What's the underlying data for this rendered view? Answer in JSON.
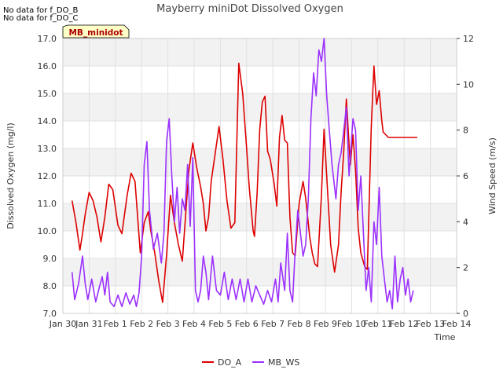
{
  "chart_data": {
    "type": "line",
    "title": "Mayberry miniDot Dissolved Oxygen",
    "notes": [
      "No data for f_DO_B",
      "No data for f_DO_C"
    ],
    "station_label": "MB_minidot",
    "xlabel": "Time",
    "ylabel_left": "Dissolved Oxygen (mg/l)",
    "ylabel_right": "Wind Speed (m/s)",
    "x_ticks": [
      "Jan 30",
      "Jan 31",
      "Feb 1",
      "Feb 2",
      "Feb 3",
      "Feb 4",
      "Feb 5",
      "Feb 6",
      "Feb 7",
      "Feb 8",
      "Feb 9",
      "Feb 10",
      "Feb 11",
      "Feb 12",
      "Feb 13",
      "Feb 14"
    ],
    "xlim": [
      0,
      15
    ],
    "ylim_left": [
      7.0,
      17.0
    ],
    "ylim_right": [
      0,
      12
    ],
    "y_ticks_left": [
      "7.0",
      "8.0",
      "9.0",
      "10.0",
      "11.0",
      "12.0",
      "13.0",
      "14.0",
      "15.0",
      "16.0",
      "17.0"
    ],
    "y_ticks_right": [
      "0",
      "2",
      "4",
      "6",
      "8",
      "10",
      "12"
    ],
    "grid": true,
    "legend": "bottom",
    "series": [
      {
        "name": "DO_A",
        "axis": "left",
        "color": "#dd0000",
        "x": [
          0.35,
          0.5,
          0.65,
          0.75,
          0.85,
          1.0,
          1.15,
          1.3,
          1.45,
          1.6,
          1.75,
          1.9,
          2.1,
          2.25,
          2.45,
          2.6,
          2.75,
          2.95,
          3.1,
          3.25,
          3.35,
          3.5,
          3.65,
          3.8,
          3.95,
          4.1,
          4.25,
          4.4,
          4.55,
          4.7,
          4.8,
          4.95,
          5.1,
          5.25,
          5.35,
          5.45,
          5.55,
          5.65,
          5.8,
          5.95,
          6.1,
          6.25,
          6.4,
          6.55,
          6.7,
          6.85,
          7.0,
          7.1,
          7.25,
          7.3,
          7.4,
          7.5,
          7.6,
          7.7,
          7.8,
          7.9,
          8.05,
          8.15,
          8.25,
          8.35,
          8.45,
          8.55,
          8.65,
          8.75,
          8.85,
          9.0,
          9.15,
          9.25,
          9.4,
          9.5,
          9.6,
          9.7,
          9.85,
          9.95,
          10.05,
          10.2,
          10.35,
          10.5,
          10.6,
          10.7,
          10.8,
          10.95,
          11.05,
          11.15,
          11.25,
          11.35,
          11.5,
          11.6,
          11.75,
          11.85,
          11.95,
          12.05,
          12.15,
          12.2,
          12.3,
          12.4,
          12.55,
          12.65,
          12.75,
          12.9,
          13.0,
          13.05,
          13.15,
          13.25,
          13.3,
          13.4,
          13.5
        ],
        "y": [
          11.1,
          10.3,
          9.3,
          9.9,
          10.6,
          11.4,
          11.1,
          10.5,
          9.6,
          10.5,
          11.7,
          11.5,
          10.2,
          9.9,
          11.3,
          12.1,
          11.8,
          9.2,
          10.3,
          10.7,
          10.0,
          9.2,
          8.2,
          7.4,
          9.1,
          11.3,
          10.3,
          9.5,
          8.9,
          10.9,
          12.2,
          13.2,
          12.3,
          11.6,
          11.0,
          10.0,
          10.5,
          11.8,
          12.8,
          13.8,
          12.6,
          11.1,
          10.1,
          10.3,
          16.1,
          15.0,
          13.0,
          11.6,
          10.0,
          9.8,
          11.4,
          13.7,
          14.7,
          14.9,
          12.9,
          12.6,
          11.7,
          10.9,
          13.4,
          14.2,
          13.3,
          13.2,
          10.5,
          9.2,
          9.1,
          11.0,
          11.8,
          11.2,
          9.8,
          9.2,
          8.8,
          8.7,
          11.3,
          13.7,
          12.0,
          9.5,
          8.5,
          9.5,
          11.4,
          12.9,
          14.8,
          12.4,
          13.5,
          12.2,
          10.1,
          9.2,
          8.7,
          8.6,
          13.8,
          16.0,
          14.6,
          15.1,
          14.0,
          13.6,
          13.5,
          13.4,
          13.4,
          13.4,
          13.4,
          13.4,
          13.4,
          13.4,
          13.4,
          13.4,
          13.4,
          13.4,
          13.4
        ]
      },
      {
        "name": "MB_WS",
        "axis": "right",
        "color": "#9b30ff",
        "x": [
          0.35,
          0.45,
          0.6,
          0.75,
          0.85,
          0.95,
          1.1,
          1.25,
          1.4,
          1.5,
          1.6,
          1.7,
          1.8,
          1.95,
          2.1,
          2.25,
          2.4,
          2.55,
          2.7,
          2.8,
          2.9,
          3.0,
          3.1,
          3.2,
          3.3,
          3.45,
          3.6,
          3.75,
          3.85,
          3.95,
          4.05,
          4.15,
          4.25,
          4.35,
          4.45,
          4.55,
          4.65,
          4.75,
          4.85,
          4.95,
          5.05,
          5.15,
          5.25,
          5.35,
          5.45,
          5.55,
          5.7,
          5.85,
          6.0,
          6.15,
          6.3,
          6.45,
          6.6,
          6.75,
          6.9,
          7.05,
          7.2,
          7.35,
          7.5,
          7.65,
          7.8,
          7.95,
          8.1,
          8.2,
          8.3,
          8.45,
          8.55,
          8.65,
          8.75,
          8.85,
          8.95,
          9.05,
          9.15,
          9.25,
          9.35,
          9.45,
          9.55,
          9.65,
          9.75,
          9.85,
          9.95,
          10.05,
          10.15,
          10.25,
          10.4,
          10.5,
          10.6,
          10.7,
          10.8,
          10.9,
          11.05,
          11.15,
          11.25,
          11.35,
          11.45,
          11.55,
          11.65,
          11.75,
          11.85,
          11.95,
          12.05,
          12.15,
          12.25,
          12.35,
          12.45,
          12.55,
          12.65,
          12.75,
          12.85,
          12.95,
          13.05,
          13.15,
          13.25,
          13.35
        ],
        "y": [
          1.8,
          0.6,
          1.3,
          2.5,
          1.3,
          0.6,
          1.5,
          0.5,
          1.2,
          1.6,
          0.8,
          1.8,
          0.5,
          0.3,
          0.8,
          0.3,
          0.9,
          0.4,
          0.8,
          0.3,
          0.9,
          2.5,
          6.5,
          7.5,
          4.5,
          2.8,
          3.5,
          2.2,
          3.5,
          7.5,
          8.5,
          6.0,
          4.0,
          5.5,
          3.5,
          5.0,
          4.5,
          6.5,
          3.8,
          6.8,
          1.0,
          0.5,
          1.0,
          2.5,
          1.8,
          0.6,
          2.5,
          1.0,
          0.8,
          1.8,
          0.6,
          1.5,
          0.6,
          1.5,
          0.5,
          1.5,
          0.5,
          1.2,
          0.8,
          0.4,
          1.0,
          0.5,
          1.5,
          0.5,
          2.2,
          1.0,
          3.5,
          1.0,
          0.5,
          2.8,
          4.5,
          3.5,
          2.5,
          3.0,
          5.0,
          8.5,
          10.5,
          9.5,
          11.5,
          11.0,
          12.0,
          9.5,
          8.0,
          6.5,
          5.0,
          6.5,
          7.0,
          8.0,
          9.0,
          6.0,
          8.5,
          8.0,
          4.5,
          6.0,
          3.5,
          1.0,
          2.0,
          0.5,
          4.0,
          3.0,
          5.5,
          2.5,
          1.5,
          0.5,
          1.0,
          0.2,
          2.5,
          0.5,
          1.5,
          2.0,
          0.8,
          1.5,
          0.5,
          1.0
        ]
      }
    ]
  }
}
